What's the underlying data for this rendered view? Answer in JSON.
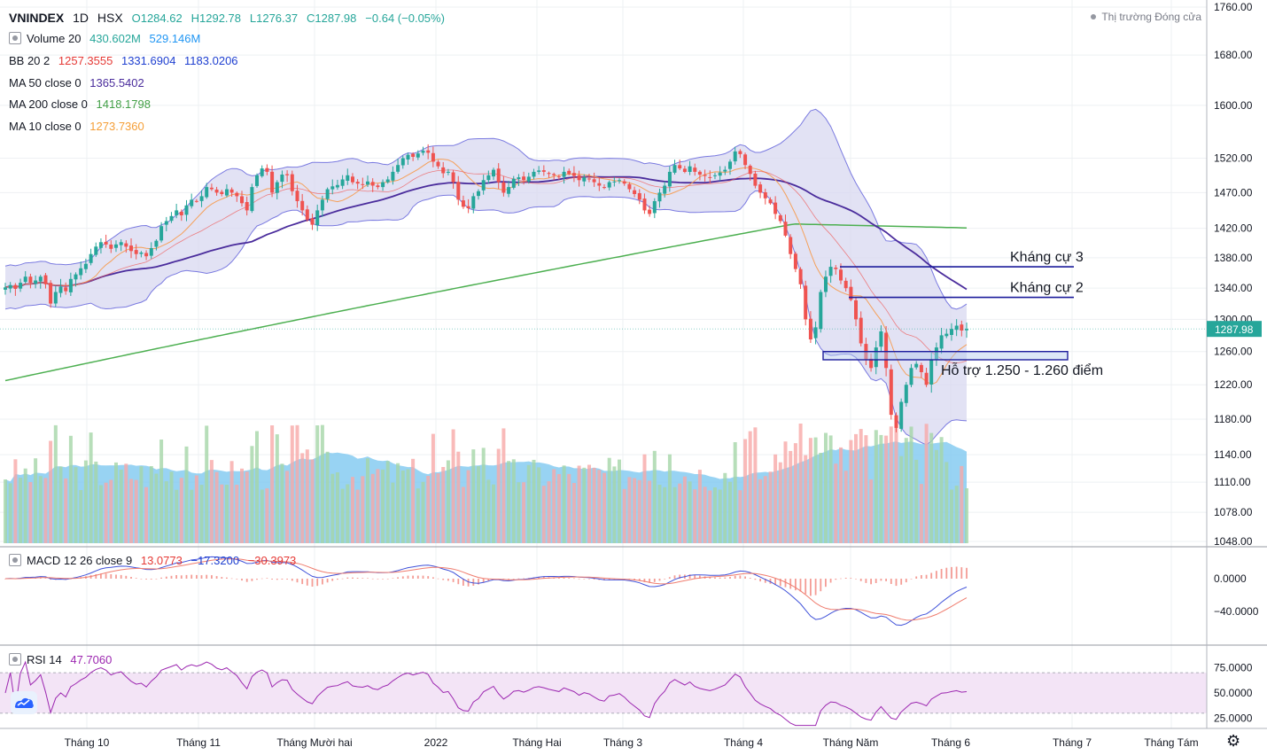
{
  "header": {
    "symbol": "VNINDEX",
    "interval": "1D",
    "exchange": "HSX",
    "ohlc": {
      "o": "O1284.62",
      "h": "H1292.78",
      "l": "L1276.37",
      "c": "C1287.98",
      "chg": "−0.64 (−0.05%)"
    },
    "status": "Thị trường Đóng cửa"
  },
  "indicators": {
    "volume": {
      "label": "Volume 20",
      "v1": "430.602M",
      "v2": "529.146M"
    },
    "bb": {
      "label": "BB 20 2",
      "v1": "1257.3555",
      "v2": "1331.6904",
      "v3": "1183.0206"
    },
    "ma50": {
      "label": "MA 50 close 0",
      "v1": "1365.5402"
    },
    "ma200": {
      "label": "MA 200 close 0",
      "v1": "1418.1798"
    },
    "ma10": {
      "label": "MA 10 close 0",
      "v1": "1273.7360"
    },
    "macd": {
      "label": "MACD 12 26 close 9",
      "v1": "13.0773",
      "v2": "−17.3200",
      "v3": "−30.3973"
    },
    "rsi": {
      "label": "RSI 14",
      "v1": "47.7060"
    }
  },
  "colors": {
    "up": "#26a69a",
    "down": "#ef5350",
    "up_vol": "#a5d6a7",
    "down_vol": "#f7a9a7",
    "bb_fill": "#d8d8f0",
    "bb_line": "#7a7ae0",
    "ma50": "#4a2c9c",
    "ma200": "#4caf50",
    "ma10": "#f5a05a",
    "vol_ma": "#7ec8f0",
    "annot": "#1c1c9c",
    "price_tag": "#26a69a",
    "macd": "#3f51d9",
    "signal": "#ef7c6e",
    "rsi": "#9c27b0",
    "rsi_band": "#f3e4f6"
  },
  "chart_data": [
    {
      "type": "candlestick",
      "title": "VNINDEX, 1D, HSX",
      "x_ticks": [
        "Tháng 10",
        "Tháng 11",
        "Tháng Mười hai",
        "2022",
        "Tháng Hai",
        "Tháng 3",
        "Tháng 4",
        "Tháng Năm",
        "Tháng 6",
        "Tháng 7",
        "Tháng Tám"
      ],
      "y_ticks": [
        "1760.00",
        "1680.00",
        "1600.00",
        "1520.00",
        "1470.00",
        "1420.00",
        "1380.00",
        "1340.00",
        "1300.00",
        "1260.00",
        "1220.00",
        "1180.00",
        "1140.00",
        "1110.00",
        "1078.00",
        "1048.00"
      ],
      "y_scale": "log",
      "ylim": [
        1048,
        1760
      ],
      "last_price": "1287.98",
      "close_series": [
        1341,
        1344,
        1339,
        1347,
        1355,
        1347,
        1350,
        1355,
        1345,
        1320,
        1335,
        1342,
        1336,
        1352,
        1358,
        1366,
        1372,
        1385,
        1395,
        1401,
        1398,
        1392,
        1398,
        1401,
        1395,
        1389,
        1385,
        1387,
        1382,
        1393,
        1403,
        1423,
        1430,
        1437,
        1445,
        1438,
        1452,
        1460,
        1458,
        1465,
        1478,
        1475,
        1470,
        1468,
        1475,
        1470,
        1465,
        1455,
        1445,
        1478,
        1495,
        1505,
        1500,
        1470,
        1485,
        1496,
        1495,
        1472,
        1458,
        1445,
        1432,
        1425,
        1445,
        1460,
        1475,
        1479,
        1481,
        1489,
        1495,
        1485,
        1483,
        1482,
        1486,
        1480,
        1478,
        1485,
        1489,
        1500,
        1510,
        1520,
        1525,
        1522,
        1527,
        1531,
        1528,
        1515,
        1508,
        1498,
        1500,
        1485,
        1460,
        1450,
        1448,
        1465,
        1472,
        1488,
        1495,
        1503,
        1485,
        1470,
        1478,
        1490,
        1492,
        1488,
        1493,
        1500,
        1502,
        1500,
        1497,
        1495,
        1493,
        1500,
        1497,
        1494,
        1488,
        1492,
        1490,
        1485,
        1480,
        1478,
        1485,
        1486,
        1488,
        1483,
        1475,
        1468,
        1460,
        1445,
        1440,
        1458,
        1470,
        1480,
        1500,
        1510,
        1505,
        1500,
        1508,
        1500,
        1496,
        1494,
        1492,
        1495,
        1499,
        1503,
        1515,
        1530,
        1526,
        1510,
        1497,
        1480,
        1470,
        1462,
        1455,
        1440,
        1430,
        1410,
        1385,
        1365,
        1345,
        1300,
        1275,
        1290,
        1335,
        1355,
        1368,
        1365,
        1350,
        1340,
        1325,
        1300,
        1270,
        1250,
        1240,
        1265,
        1285,
        1240,
        1185,
        1170,
        1200,
        1220,
        1240,
        1245,
        1235,
        1220,
        1250,
        1265,
        1280,
        1282,
        1288,
        1292,
        1286,
        1287.98
      ],
      "series": [
        {
          "name": "MA 50 close 0",
          "last": 1365.5402
        },
        {
          "name": "MA 200 close 0",
          "last": 1418.1798
        },
        {
          "name": "MA 10 close 0",
          "last": 1273.736
        },
        {
          "name": "BB 20 2",
          "basis": 1257.3555,
          "upper": 1331.6904,
          "lower": 1183.0206
        }
      ],
      "volume": {
        "name": "Volume 20",
        "last": "430.602M",
        "ma": "529.146M"
      },
      "annotations": [
        {
          "label": "Kháng cự 3",
          "price": 1368
        },
        {
          "label": "Kháng cự 2",
          "price": 1328
        },
        {
          "label": "Hỗ trợ 1.250 - 1.260 điểm",
          "price_low": 1250,
          "price_high": 1260
        }
      ]
    },
    {
      "type": "line",
      "title": "MACD 12 26 close 9",
      "y_ticks": [
        "0.0000",
        "−40.0000"
      ],
      "series": [
        {
          "name": "MACD",
          "last": -17.32
        },
        {
          "name": "Signal",
          "last": -30.3973
        },
        {
          "name": "Histogram",
          "last": 13.0773
        }
      ]
    },
    {
      "type": "line",
      "title": "RSI 14",
      "y_ticks": [
        "75.0000",
        "50.0000",
        "25.0000"
      ],
      "ylim": [
        15,
        85
      ],
      "band": [
        30,
        70
      ],
      "series": [
        {
          "name": "RSI 14",
          "last": 47.706
        }
      ]
    }
  ]
}
